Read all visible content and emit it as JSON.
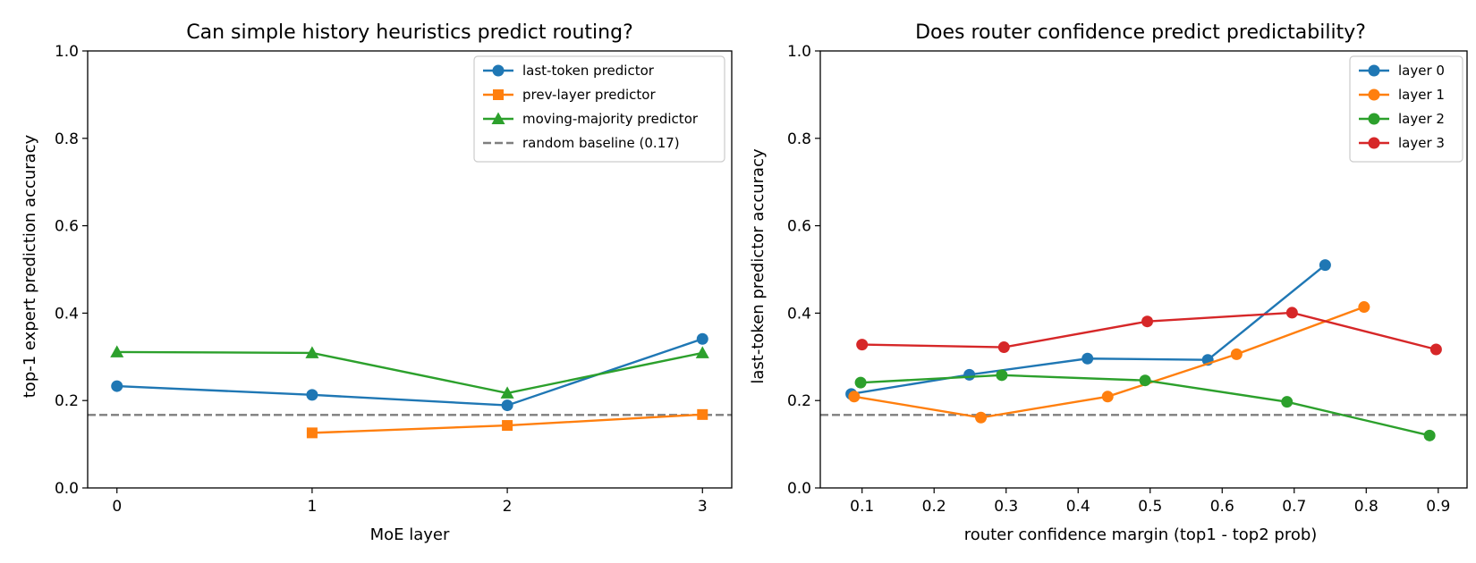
{
  "chart_data": [
    {
      "type": "line",
      "title": "Can simple history heuristics predict routing?",
      "xlabel": "MoE layer",
      "ylabel": "top-1 expert prediction accuracy",
      "xlim": [
        -0.15,
        3.15
      ],
      "ylim": [
        0.0,
        1.0
      ],
      "xticks": [
        0,
        1,
        2,
        3
      ],
      "xtick_labels": [
        "0",
        "1",
        "2",
        "3"
      ],
      "yticks": [
        0.0,
        0.2,
        0.4,
        0.6,
        0.8,
        1.0
      ],
      "ytick_labels": [
        "0.0",
        "0.2",
        "0.4",
        "0.6",
        "0.8",
        "1.0"
      ],
      "grid": false,
      "legend_position": "top-right",
      "series": [
        {
          "name": "last-token predictor",
          "color": "#1f77b4",
          "marker": "circle",
          "x": [
            0,
            1,
            2,
            3
          ],
          "y": [
            0.233,
            0.213,
            0.189,
            0.341
          ]
        },
        {
          "name": "prev-layer predictor",
          "color": "#ff7f0e",
          "marker": "square",
          "x": [
            1,
            2,
            3
          ],
          "y": [
            0.126,
            0.143,
            0.168
          ]
        },
        {
          "name": "moving-majority predictor",
          "color": "#2ca02c",
          "marker": "triangle",
          "x": [
            0,
            1,
            2,
            3
          ],
          "y": [
            0.311,
            0.309,
            0.217,
            0.309
          ]
        }
      ],
      "reference_lines": [
        {
          "name": "random baseline (0.17)",
          "y": 0.167,
          "color": "#7f7f7f",
          "style": "dashed"
        }
      ]
    },
    {
      "type": "line",
      "title": "Does router confidence predict predictability?",
      "xlabel": "router confidence margin (top1 - top2 prob)",
      "ylabel": "last-token predictor accuracy",
      "xlim": [
        0.042,
        0.94
      ],
      "ylim": [
        0.0,
        1.0
      ],
      "xticks": [
        0.1,
        0.2,
        0.3,
        0.4,
        0.5,
        0.6,
        0.7,
        0.8,
        0.9
      ],
      "xtick_labels": [
        "0.1",
        "0.2",
        "0.3",
        "0.4",
        "0.5",
        "0.6",
        "0.7",
        "0.8",
        "0.9"
      ],
      "yticks": [
        0.0,
        0.2,
        0.4,
        0.6,
        0.8,
        1.0
      ],
      "ytick_labels": [
        "0.0",
        "0.2",
        "0.4",
        "0.6",
        "0.8",
        "1.0"
      ],
      "grid": false,
      "legend_position": "top-right",
      "series": [
        {
          "name": "layer 0",
          "color": "#1f77b4",
          "marker": "circle",
          "x": [
            0.085,
            0.249,
            0.413,
            0.58,
            0.743
          ],
          "y": [
            0.215,
            0.259,
            0.296,
            0.293,
            0.51
          ]
        },
        {
          "name": "layer 1",
          "color": "#ff7f0e",
          "marker": "circle",
          "x": [
            0.089,
            0.265,
            0.441,
            0.62,
            0.797
          ],
          "y": [
            0.209,
            0.161,
            0.209,
            0.306,
            0.414
          ]
        },
        {
          "name": "layer 2",
          "color": "#2ca02c",
          "marker": "circle",
          "x": [
            0.098,
            0.294,
            0.493,
            0.69,
            0.888
          ],
          "y": [
            0.241,
            0.258,
            0.246,
            0.197,
            0.12
          ]
        },
        {
          "name": "layer 3",
          "color": "#d62728",
          "marker": "circle",
          "x": [
            0.1,
            0.297,
            0.496,
            0.697,
            0.897
          ],
          "y": [
            0.328,
            0.322,
            0.381,
            0.401,
            0.317
          ]
        }
      ],
      "reference_lines": [
        {
          "y": 0.167,
          "color": "#7f7f7f",
          "style": "dashed"
        }
      ]
    }
  ]
}
